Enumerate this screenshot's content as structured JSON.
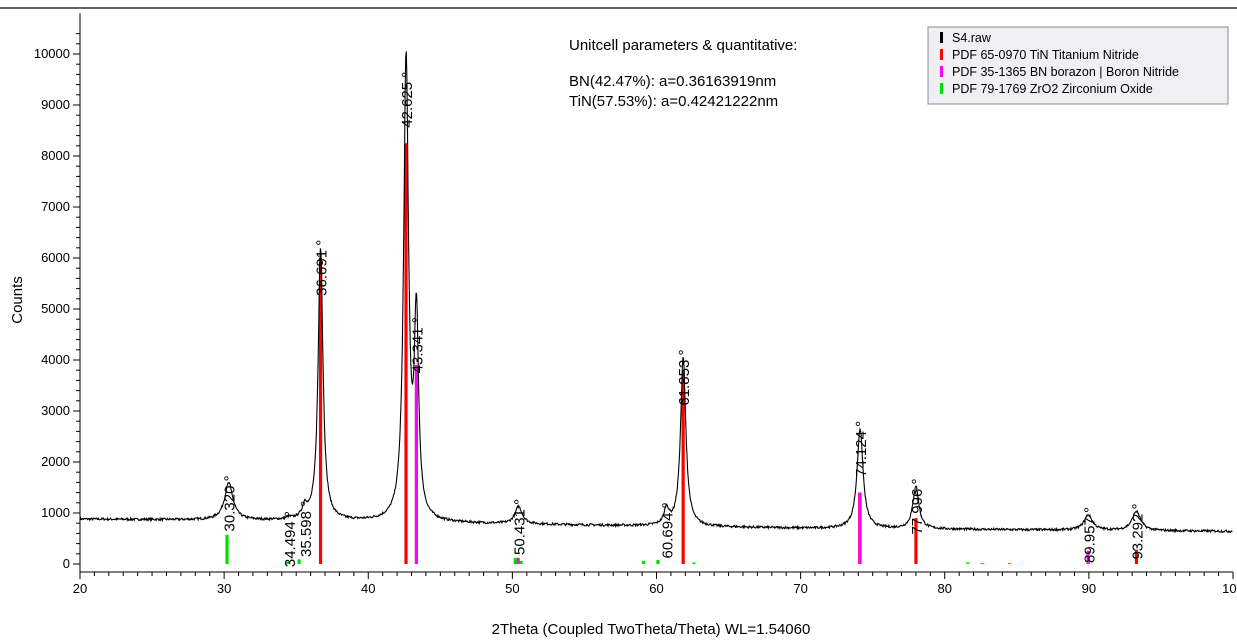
{
  "chart_data": {
    "type": "line",
    "xlabel": "2Theta (Coupled TwoTheta/Theta) WL=1.54060",
    "ylabel": "Counts",
    "xlim": [
      20,
      100
    ],
    "ylim": [
      -200,
      10800
    ],
    "x_ticks": [
      20,
      30,
      40,
      50,
      60,
      70,
      80,
      90,
      100
    ],
    "y_ticks": [
      0,
      1000,
      2000,
      3000,
      4000,
      5000,
      6000,
      7000,
      8000,
      9000,
      10000
    ],
    "info": {
      "title": "Unitcell parameters & quantitative:",
      "lines": [
        "BN(42.47%): a=0.36163919nm",
        "TiN(57.53%): a=0.42421222nm"
      ]
    },
    "legend": [
      {
        "label": "S4.raw",
        "color": "#000000"
      },
      {
        "label": "PDF 65-0970 TiN Titanium Nitride",
        "color": "#ff0000"
      },
      {
        "label": "PDF 35-1365 BN borazon | Boron Nitride",
        "color": "#ff00ff"
      },
      {
        "label": "PDF 79-1769 ZrO2 Zirconium Oxide",
        "color": "#00dd00"
      }
    ],
    "series": [
      {
        "name": "S4.raw",
        "color": "#000000",
        "baseline": [
          [
            20,
            880
          ],
          [
            30,
            860
          ],
          [
            40,
            830
          ],
          [
            50,
            780
          ],
          [
            60,
            740
          ],
          [
            70,
            700
          ],
          [
            80,
            680
          ],
          [
            90,
            660
          ],
          [
            100,
            640
          ]
        ],
        "peaks": [
          {
            "x": 30.32,
            "y": 1580,
            "w": 0.35
          },
          {
            "x": 34.494,
            "y": 880,
            "w": 0.2
          },
          {
            "x": 35.598,
            "y": 1080,
            "w": 0.2
          },
          {
            "x": 36.691,
            "y": 6200,
            "w": 0.2
          },
          {
            "x": 42.625,
            "y": 9850,
            "w": 0.2
          },
          {
            "x": 43.341,
            "y": 4680,
            "w": 0.18
          },
          {
            "x": 50.431,
            "y": 1120,
            "w": 0.3
          },
          {
            "x": 60.694,
            "y": 1050,
            "w": 0.2
          },
          {
            "x": 61.853,
            "y": 4050,
            "w": 0.22
          },
          {
            "x": 74.124,
            "y": 2650,
            "w": 0.25
          },
          {
            "x": 77.996,
            "y": 1520,
            "w": 0.25
          },
          {
            "x": 89.957,
            "y": 960,
            "w": 0.35
          },
          {
            "x": 93.292,
            "y": 1030,
            "w": 0.35
          }
        ]
      }
    ],
    "reference_sticks": [
      {
        "name": "PDF 65-0970 TiN Titanium Nitride",
        "color": "#ff0000",
        "sticks": [
          [
            36.69,
            6000
          ],
          [
            42.62,
            8250
          ],
          [
            61.85,
            3700
          ],
          [
            74.1,
            1400
          ],
          [
            78.0,
            900
          ],
          [
            93.3,
            280
          ]
        ]
      },
      {
        "name": "PDF 35-1365 BN borazon | Boron Nitride",
        "color": "#ff00ff",
        "sticks": [
          [
            43.34,
            3900
          ],
          [
            50.4,
            120
          ],
          [
            74.12,
            1400
          ],
          [
            89.95,
            260
          ]
        ]
      },
      {
        "name": "PDF 79-1769 ZrO2 Zirconium Oxide",
        "color": "#00dd00",
        "sticks": [
          [
            30.2,
            570
          ],
          [
            34.4,
            40
          ],
          [
            35.2,
            90
          ],
          [
            50.2,
            120
          ],
          [
            50.6,
            60
          ],
          [
            59.1,
            60
          ],
          [
            60.1,
            80
          ],
          [
            62.6,
            30
          ],
          [
            81.6,
            30
          ],
          [
            82.6,
            20
          ],
          [
            84.5,
            20
          ]
        ]
      }
    ],
    "peak_labels": [
      {
        "x": 30.32,
        "text": "30.320 °"
      },
      {
        "x": 34.494,
        "text": "34.494 °"
      },
      {
        "x": 35.598,
        "text": "35.598 °"
      },
      {
        "x": 36.691,
        "text": "36.691 °"
      },
      {
        "x": 42.625,
        "text": "42.625 °"
      },
      {
        "x": 43.341,
        "text": "43.341 °"
      },
      {
        "x": 50.431,
        "text": "50.431 °"
      },
      {
        "x": 60.694,
        "text": "60.694 °"
      },
      {
        "x": 61.853,
        "text": "61.853 °"
      },
      {
        "x": 74.124,
        "text": "74.124 °"
      },
      {
        "x": 77.996,
        "text": "77.996 °"
      },
      {
        "x": 89.957,
        "text": "89.957 °"
      },
      {
        "x": 93.292,
        "text": "93.292 °"
      }
    ]
  }
}
